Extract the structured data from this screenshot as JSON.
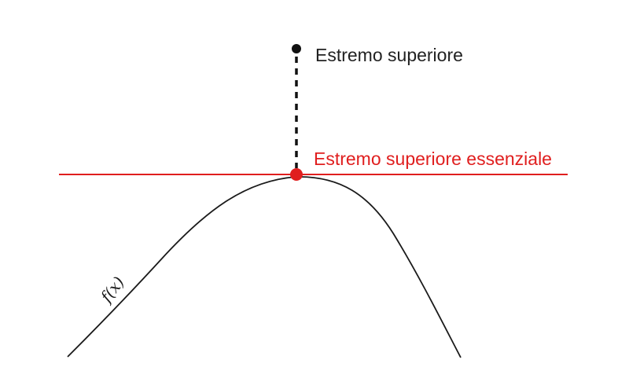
{
  "diagram": {
    "labels": {
      "sup": "Estremo superiore",
      "ess_sup": "Estremo superiore essenziale",
      "curve": "f(x)"
    },
    "colors": {
      "curve": "#1a1a1a",
      "essential_line": "#e01e1e",
      "essential_point": "#e01e1e",
      "sup_point": "#111111",
      "sup_text": "#222222",
      "ess_text": "#e01e1e",
      "dashed_segment": "#111111"
    }
  }
}
